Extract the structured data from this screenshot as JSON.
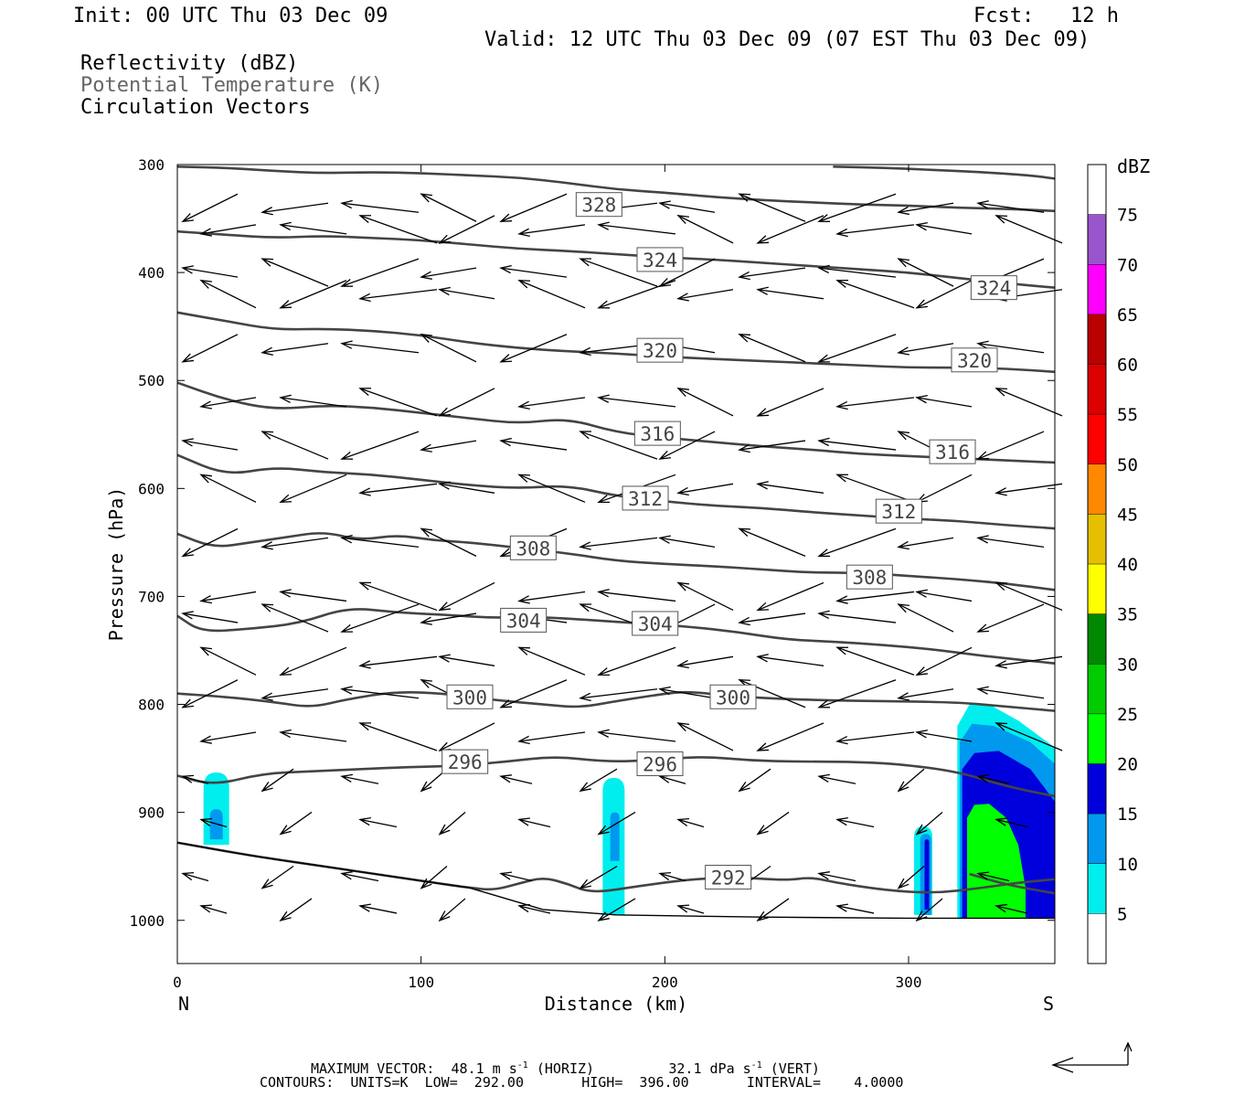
{
  "header": {
    "init": "Init: 00 UTC Thu 03 Dec 09",
    "fcst": "Fcst:   12 h",
    "valid": "Valid: 12 UTC Thu 03 Dec 09 (07 EST Thu 03 Dec 09)",
    "fields": [
      "Reflectivity (dBZ)",
      "Potential Temperature (K)",
      "Circulation Vectors"
    ]
  },
  "footer": {
    "max_vector_label": "MAXIMUM VECTOR:",
    "max_horiz": "48.1 m s",
    "max_horiz_unit": "(HORIZ)",
    "max_vert": "32.1 dPa s",
    "max_vert_unit": "(VERT)",
    "contours": "CONTOURS:  UNITS=K  LOW=  292.00       HIGH=  396.00       INTERVAL=    4.0000"
  },
  "colors": {
    "theta_line": "#444444",
    "dbz_scale": [
      "#ffffff",
      "#00eeee",
      "#0099ee",
      "#0000dd",
      "#00ff00",
      "#00cc00",
      "#008800",
      "#ffff00",
      "#e5c000",
      "#ff8800",
      "#ff0000",
      "#dd0000",
      "#bb0000",
      "#ff00ff",
      "#9955cc",
      "#ffffff"
    ]
  },
  "chart_data": {
    "type": "cross-section",
    "xlabel": "Distance (km)",
    "ylabel": "Pressure (hPa)",
    "xlim": [
      0,
      360
    ],
    "ylim": [
      1040,
      300
    ],
    "x_ticks": [
      0,
      100,
      200,
      300
    ],
    "y_ticks": [
      300,
      400,
      500,
      600,
      700,
      800,
      900,
      1000
    ],
    "x_end_labels": [
      "N",
      "S"
    ],
    "colorbar": {
      "title": "dBZ",
      "levels": [
        5,
        10,
        15,
        20,
        25,
        30,
        35,
        40,
        45,
        50,
        55,
        60,
        65,
        70,
        75
      ]
    },
    "theta_contours": [
      {
        "value": 328,
        "label_at": [
          173,
          337
        ],
        "points": [
          [
            0,
            302
          ],
          [
            20,
            303
          ],
          [
            40,
            306
          ],
          [
            60,
            308
          ],
          [
            80,
            307
          ],
          [
            100,
            308
          ],
          [
            120,
            310
          ],
          [
            140,
            312
          ],
          [
            160,
            317
          ],
          [
            180,
            323
          ],
          [
            200,
            326
          ],
          [
            220,
            330
          ],
          [
            240,
            333
          ],
          [
            260,
            335
          ],
          [
            280,
            337
          ],
          [
            300,
            338
          ],
          [
            320,
            340
          ],
          [
            340,
            341
          ],
          [
            360,
            343
          ]
        ]
      },
      {
        "value": 328,
        "label_at": null,
        "points": [
          [
            269,
            302
          ],
          [
            290,
            303
          ],
          [
            310,
            305
          ],
          [
            330,
            307
          ],
          [
            350,
            310
          ],
          [
            360,
            313
          ]
        ]
      },
      {
        "value": 324,
        "label_at": [
          198,
          388
        ],
        "points": [
          [
            0,
            362
          ],
          [
            20,
            365
          ],
          [
            40,
            368
          ],
          [
            60,
            366
          ],
          [
            80,
            368
          ],
          [
            100,
            370
          ],
          [
            120,
            374
          ],
          [
            140,
            378
          ],
          [
            160,
            380
          ],
          [
            180,
            383
          ],
          [
            200,
            386
          ],
          [
            220,
            388
          ],
          [
            240,
            391
          ],
          [
            260,
            394
          ],
          [
            280,
            397
          ],
          [
            300,
            400
          ],
          [
            320,
            405
          ],
          [
            340,
            410
          ],
          [
            360,
            414
          ]
        ]
      },
      {
        "value": 324,
        "label_at": [
          335,
          414
        ],
        "points": []
      },
      {
        "value": 320,
        "label_at": [
          198,
          472
        ],
        "points": [
          [
            0,
            437
          ],
          [
            20,
            445
          ],
          [
            40,
            453
          ],
          [
            60,
            452
          ],
          [
            80,
            454
          ],
          [
            100,
            458
          ],
          [
            120,
            465
          ],
          [
            140,
            470
          ],
          [
            160,
            473
          ],
          [
            180,
            475
          ],
          [
            200,
            478
          ],
          [
            220,
            480
          ],
          [
            240,
            482
          ],
          [
            260,
            484
          ],
          [
            280,
            486
          ],
          [
            300,
            488
          ],
          [
            320,
            488
          ],
          [
            340,
            489
          ],
          [
            360,
            492
          ]
        ]
      },
      {
        "value": 320,
        "label_at": [
          327,
          481
        ],
        "points": []
      },
      {
        "value": 316,
        "label_at": [
          197,
          549
        ],
        "points": [
          [
            0,
            502
          ],
          [
            20,
            518
          ],
          [
            40,
            527
          ],
          [
            60,
            523
          ],
          [
            80,
            525
          ],
          [
            100,
            530
          ],
          [
            120,
            535
          ],
          [
            140,
            540
          ],
          [
            160,
            535
          ],
          [
            180,
            548
          ],
          [
            200,
            553
          ],
          [
            220,
            557
          ],
          [
            240,
            561
          ],
          [
            260,
            564
          ],
          [
            280,
            568
          ],
          [
            300,
            570
          ],
          [
            320,
            572
          ],
          [
            340,
            574
          ],
          [
            360,
            576
          ]
        ]
      },
      {
        "value": 316,
        "label_at": [
          318,
          566
        ],
        "points": []
      },
      {
        "value": 312,
        "label_at": [
          192,
          609
        ],
        "points": [
          [
            0,
            569
          ],
          [
            20,
            588
          ],
          [
            40,
            580
          ],
          [
            60,
            585
          ],
          [
            80,
            587
          ],
          [
            100,
            592
          ],
          [
            120,
            597
          ],
          [
            140,
            600
          ],
          [
            160,
            597
          ],
          [
            180,
            607
          ],
          [
            200,
            612
          ],
          [
            220,
            616
          ],
          [
            240,
            618
          ],
          [
            260,
            622
          ],
          [
            280,
            625
          ],
          [
            300,
            628
          ],
          [
            320,
            630
          ],
          [
            340,
            634
          ],
          [
            360,
            637
          ]
        ]
      },
      {
        "value": 312,
        "label_at": [
          296,
          621
        ],
        "points": []
      },
      {
        "value": 308,
        "label_at": [
          146,
          655
        ],
        "points": [
          [
            0,
            642
          ],
          [
            15,
            655
          ],
          [
            30,
            650
          ],
          [
            45,
            645
          ],
          [
            60,
            640
          ],
          [
            75,
            648
          ],
          [
            90,
            643
          ],
          [
            105,
            648
          ],
          [
            120,
            650
          ],
          [
            140,
            655
          ],
          [
            160,
            660
          ],
          [
            180,
            667
          ],
          [
            200,
            670
          ],
          [
            220,
            672
          ],
          [
            240,
            675
          ],
          [
            260,
            678
          ],
          [
            280,
            678
          ],
          [
            300,
            681
          ],
          [
            320,
            684
          ],
          [
            340,
            688
          ],
          [
            360,
            694
          ]
        ]
      },
      {
        "value": 308,
        "label_at": [
          284,
          682
        ],
        "points": []
      },
      {
        "value": 304,
        "label_at": [
          142,
          722
        ],
        "points": [
          [
            0,
            718
          ],
          [
            10,
            733
          ],
          [
            30,
            730
          ],
          [
            50,
            725
          ],
          [
            70,
            710
          ],
          [
            90,
            715
          ],
          [
            110,
            717
          ],
          [
            130,
            720
          ],
          [
            150,
            719
          ],
          [
            170,
            722
          ],
          [
            190,
            725
          ],
          [
            210,
            728
          ],
          [
            230,
            733
          ],
          [
            250,
            740
          ],
          [
            270,
            742
          ],
          [
            290,
            745
          ],
          [
            310,
            749
          ],
          [
            330,
            755
          ],
          [
            360,
            762
          ]
        ]
      },
      {
        "value": 304,
        "label_at": [
          196,
          725
        ],
        "points": []
      },
      {
        "value": 300,
        "label_at": [
          120,
          793
        ],
        "points": [
          [
            0,
            790
          ],
          [
            20,
            793
          ],
          [
            40,
            798
          ],
          [
            55,
            803
          ],
          [
            70,
            795
          ],
          [
            90,
            788
          ],
          [
            110,
            790
          ],
          [
            130,
            796
          ],
          [
            150,
            800
          ],
          [
            165,
            803
          ],
          [
            180,
            797
          ],
          [
            200,
            790
          ],
          [
            210,
            788
          ],
          [
            230,
            793
          ],
          [
            260,
            796
          ],
          [
            290,
            797
          ],
          [
            320,
            798
          ],
          [
            340,
            802
          ],
          [
            360,
            806
          ]
        ]
      },
      {
        "value": 300,
        "label_at": [
          228,
          793
        ],
        "points": []
      },
      {
        "value": 296,
        "label_at": [
          118,
          853
        ],
        "points": [
          [
            0,
            866
          ],
          [
            15,
            875
          ],
          [
            35,
            864
          ],
          [
            55,
            862
          ],
          [
            75,
            860
          ],
          [
            95,
            858
          ],
          [
            115,
            857
          ],
          [
            135,
            853
          ],
          [
            155,
            848
          ],
          [
            175,
            853
          ],
          [
            195,
            852
          ],
          [
            215,
            848
          ],
          [
            235,
            852
          ],
          [
            255,
            853
          ],
          [
            275,
            853
          ],
          [
            295,
            855
          ],
          [
            320,
            862
          ],
          [
            340,
            876
          ],
          [
            360,
            885
          ]
        ]
      },
      {
        "value": 296,
        "label_at": [
          198,
          855
        ],
        "points": []
      },
      {
        "value": 292,
        "label_at": [
          226,
          960
        ],
        "points": [
          [
            0,
            928
          ],
          [
            30,
            940
          ],
          [
            60,
            950
          ],
          [
            90,
            960
          ],
          [
            120,
            970
          ],
          [
            130,
            972
          ],
          [
            140,
            966
          ],
          [
            150,
            960
          ],
          [
            160,
            966
          ],
          [
            170,
            975
          ],
          [
            190,
            968
          ],
          [
            210,
            962
          ],
          [
            230,
            960
          ],
          [
            250,
            963
          ],
          [
            260,
            960
          ],
          [
            270,
            965
          ],
          [
            290,
            972
          ],
          [
            310,
            975
          ],
          [
            330,
            970
          ],
          [
            345,
            965
          ],
          [
            360,
            962
          ]
        ]
      },
      {
        "value": 292,
        "label_at": null,
        "points": [
          [
            325,
            957
          ],
          [
            340,
            967
          ],
          [
            360,
            975
          ]
        ]
      }
    ],
    "reflectivity_cells": [
      {
        "max_dbz": 15,
        "x_center": 16,
        "top_hpa": 863,
        "bottom_hpa": 930
      },
      {
        "max_dbz": 15,
        "x_center": 179,
        "top_hpa": 868,
        "bottom_hpa": 995
      },
      {
        "max_dbz": 15,
        "x_center": 306,
        "top_hpa": 913,
        "bottom_hpa": 995
      },
      {
        "max_dbz": 25,
        "x_center": 340,
        "top_hpa": 800,
        "bottom_hpa": 998
      }
    ],
    "circulation_vectors_note": "Predominantly north-directed (leftward) flow; arrows drawn at sampled grid points"
  }
}
